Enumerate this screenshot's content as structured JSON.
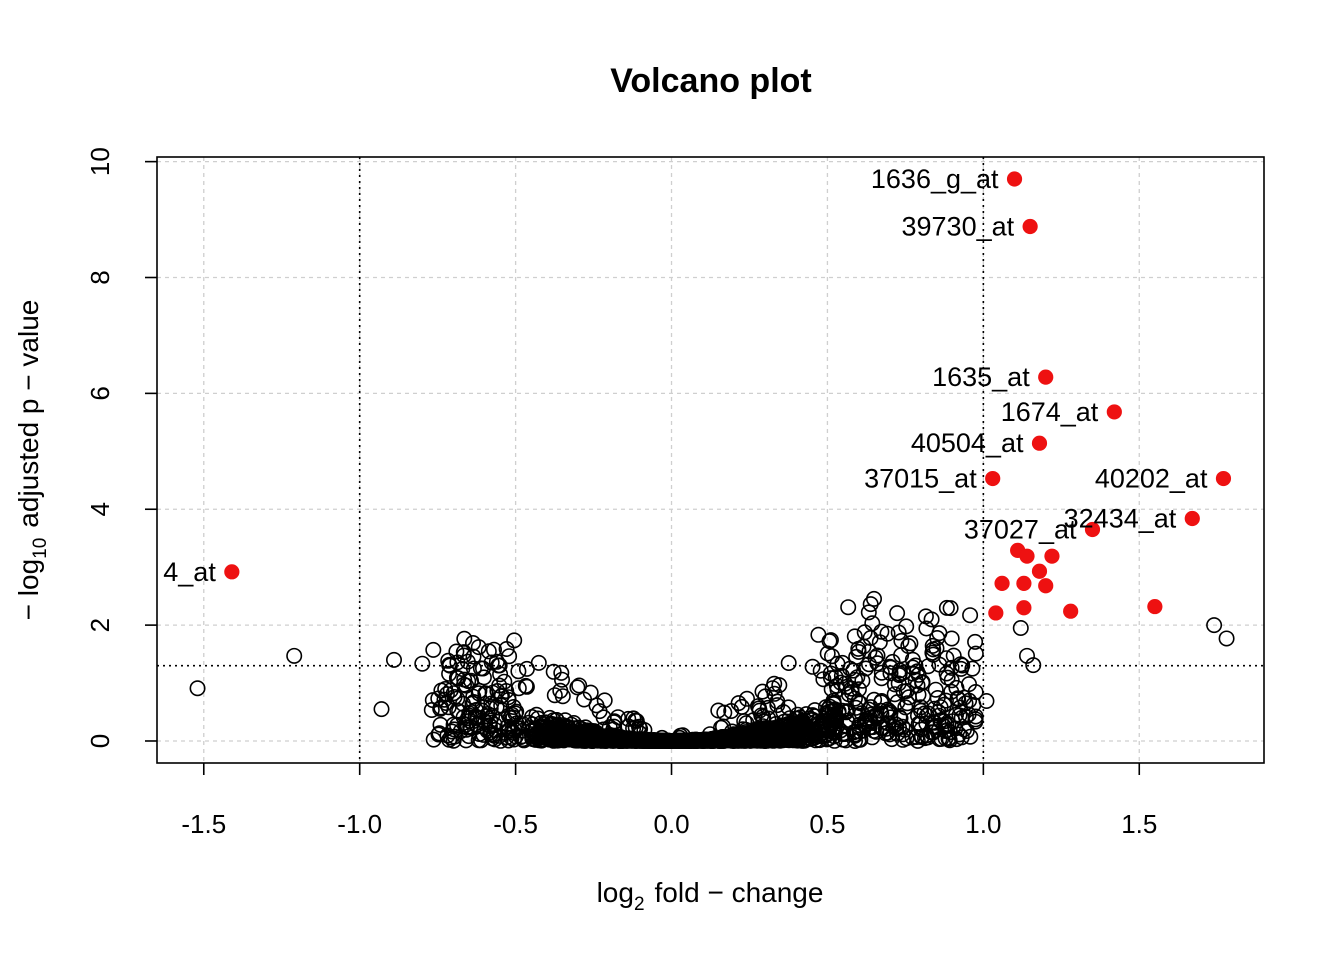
{
  "chart_data": {
    "type": "scatter",
    "title": "Volcano plot",
    "xlabel": {
      "prefix": "log",
      "sub": "2",
      "suffix": "fold − change"
    },
    "ylabel": {
      "prefix": "− log",
      "sub": "10",
      "suffix": "adjusted p − value"
    },
    "xlim": [
      -1.65,
      1.9
    ],
    "ylim": [
      -0.38,
      10.08
    ],
    "x_ticks": [
      {
        "value": -1.5,
        "label": "-1.5"
      },
      {
        "value": -1.0,
        "label": "-1.0"
      },
      {
        "value": -0.5,
        "label": "-0.5"
      },
      {
        "value": 0.0,
        "label": "0.0"
      },
      {
        "value": 0.5,
        "label": "0.5"
      },
      {
        "value": 1.0,
        "label": "1.0"
      },
      {
        "value": 1.5,
        "label": "1.5"
      }
    ],
    "y_ticks": [
      {
        "value": 0,
        "label": "0"
      },
      {
        "value": 2,
        "label": "2"
      },
      {
        "value": 4,
        "label": "4"
      },
      {
        "value": 6,
        "label": "6"
      },
      {
        "value": 8,
        "label": "8"
      },
      {
        "value": 10,
        "label": "10"
      }
    ],
    "grid": true,
    "thresholds": {
      "vertical": [
        -1.0,
        1.0
      ],
      "horizontal": [
        1.3
      ]
    },
    "colors": {
      "significant": "#ee1111",
      "other": "#000000",
      "grid": "#cfcfcf"
    },
    "labeled_points": [
      {
        "x": 1.1,
        "y": 9.7,
        "label": "1636_g_at"
      },
      {
        "x": 1.15,
        "y": 8.88,
        "label": "39730_at"
      },
      {
        "x": 1.2,
        "y": 6.28,
        "label": "1635_at"
      },
      {
        "x": 1.42,
        "y": 5.68,
        "label": "1674_at"
      },
      {
        "x": 1.18,
        "y": 5.14,
        "label": "40504_at"
      },
      {
        "x": 1.03,
        "y": 4.53,
        "label": "37015_at"
      },
      {
        "x": 1.77,
        "y": 4.53,
        "label": "40202_at"
      },
      {
        "x": 1.67,
        "y": 3.84,
        "label": "32434_at"
      },
      {
        "x": 1.35,
        "y": 3.65,
        "label": "37027_at"
      },
      {
        "x": -1.41,
        "y": 2.92,
        "label": "4_at"
      }
    ],
    "significant_unlabeled": [
      {
        "x": 1.11,
        "y": 3.29
      },
      {
        "x": 1.14,
        "y": 3.19
      },
      {
        "x": 1.22,
        "y": 3.19
      },
      {
        "x": 1.18,
        "y": 2.93
      },
      {
        "x": 1.06,
        "y": 2.72
      },
      {
        "x": 1.13,
        "y": 2.72
      },
      {
        "x": 1.2,
        "y": 2.68
      },
      {
        "x": 1.55,
        "y": 2.32
      },
      {
        "x": 1.13,
        "y": 2.3
      },
      {
        "x": 1.28,
        "y": 2.24
      },
      {
        "x": 1.04,
        "y": 2.21
      }
    ],
    "notable_nonsignificant": [
      {
        "x": -1.52,
        "y": 0.91
      },
      {
        "x": -1.21,
        "y": 1.47
      },
      {
        "x": -0.93,
        "y": 0.55
      },
      {
        "x": -0.89,
        "y": 1.4
      },
      {
        "x": 1.74,
        "y": 2.0
      },
      {
        "x": 1.78,
        "y": 1.77
      },
      {
        "x": 1.01,
        "y": 0.69
      },
      {
        "x": 1.12,
        "y": 1.95
      },
      {
        "x": 1.14,
        "y": 1.47
      },
      {
        "x": 1.16,
        "y": 1.31
      }
    ],
    "background_points": {
      "description": "",
      "count": 0
    }
  }
}
